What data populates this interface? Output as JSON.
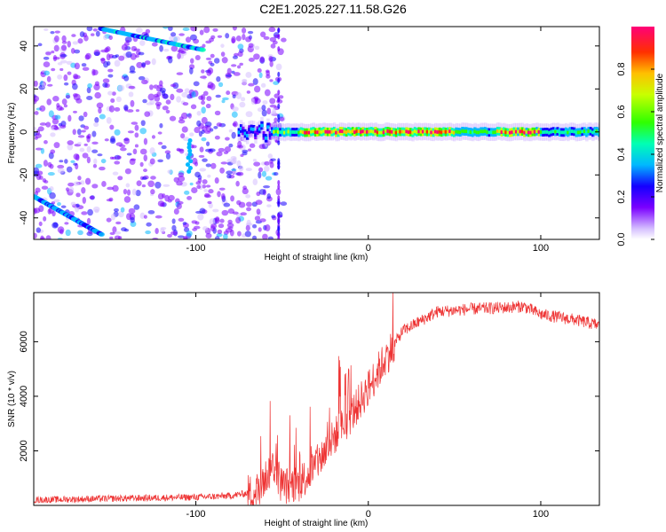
{
  "title": "C2E1.2025.227.11.58.G26",
  "chart_data": [
    {
      "type": "heatmap",
      "xlabel": "Height of straight line (km)",
      "ylabel": "Frequency (Hz)",
      "xlim": [
        -194,
        134
      ],
      "ylim": [
        -50,
        49
      ],
      "x_ticks": [
        -100,
        0,
        100
      ],
      "y_ticks": [
        -40,
        -20,
        0,
        20,
        40
      ],
      "colorbar": {
        "label": "Normalized spectral amplitude",
        "range": [
          0,
          1
        ],
        "ticks": [
          "0.0",
          "0.2",
          "0.4",
          "0.6",
          "0.8"
        ]
      },
      "ridge": {
        "description": "dominant signal near 0 Hz",
        "x_start": -75,
        "x_end": 134,
        "frequency": 0,
        "peak_amplitude_region": [
          -40,
          100
        ]
      }
    },
    {
      "type": "line",
      "xlabel": "Height of straight line (km)",
      "ylabel": "SNR (10 * v/v)",
      "xlim": [
        -194,
        134
      ],
      "ylim": [
        0,
        7800
      ],
      "x_ticks": [
        -100,
        0,
        100
      ],
      "y_ticks": [
        2000,
        4000,
        6000
      ],
      "series": [
        {
          "color": "#ee3333",
          "trend": [
            [
              -194,
              200
            ],
            [
              -150,
              250
            ],
            [
              -100,
              300
            ],
            [
              -80,
              350
            ],
            [
              -65,
              500
            ],
            [
              -55,
              1500
            ],
            [
              -50,
              700
            ],
            [
              -40,
              800
            ],
            [
              -30,
              1500
            ],
            [
              -20,
              2500
            ],
            [
              -10,
              3300
            ],
            [
              0,
              4300
            ],
            [
              10,
              5400
            ],
            [
              20,
              6400
            ],
            [
              40,
              7100
            ],
            [
              60,
              7200
            ],
            [
              80,
              7250
            ],
            [
              90,
              7300
            ],
            [
              100,
              7000
            ],
            [
              120,
              6800
            ],
            [
              134,
              6600
            ]
          ]
        }
      ]
    }
  ]
}
